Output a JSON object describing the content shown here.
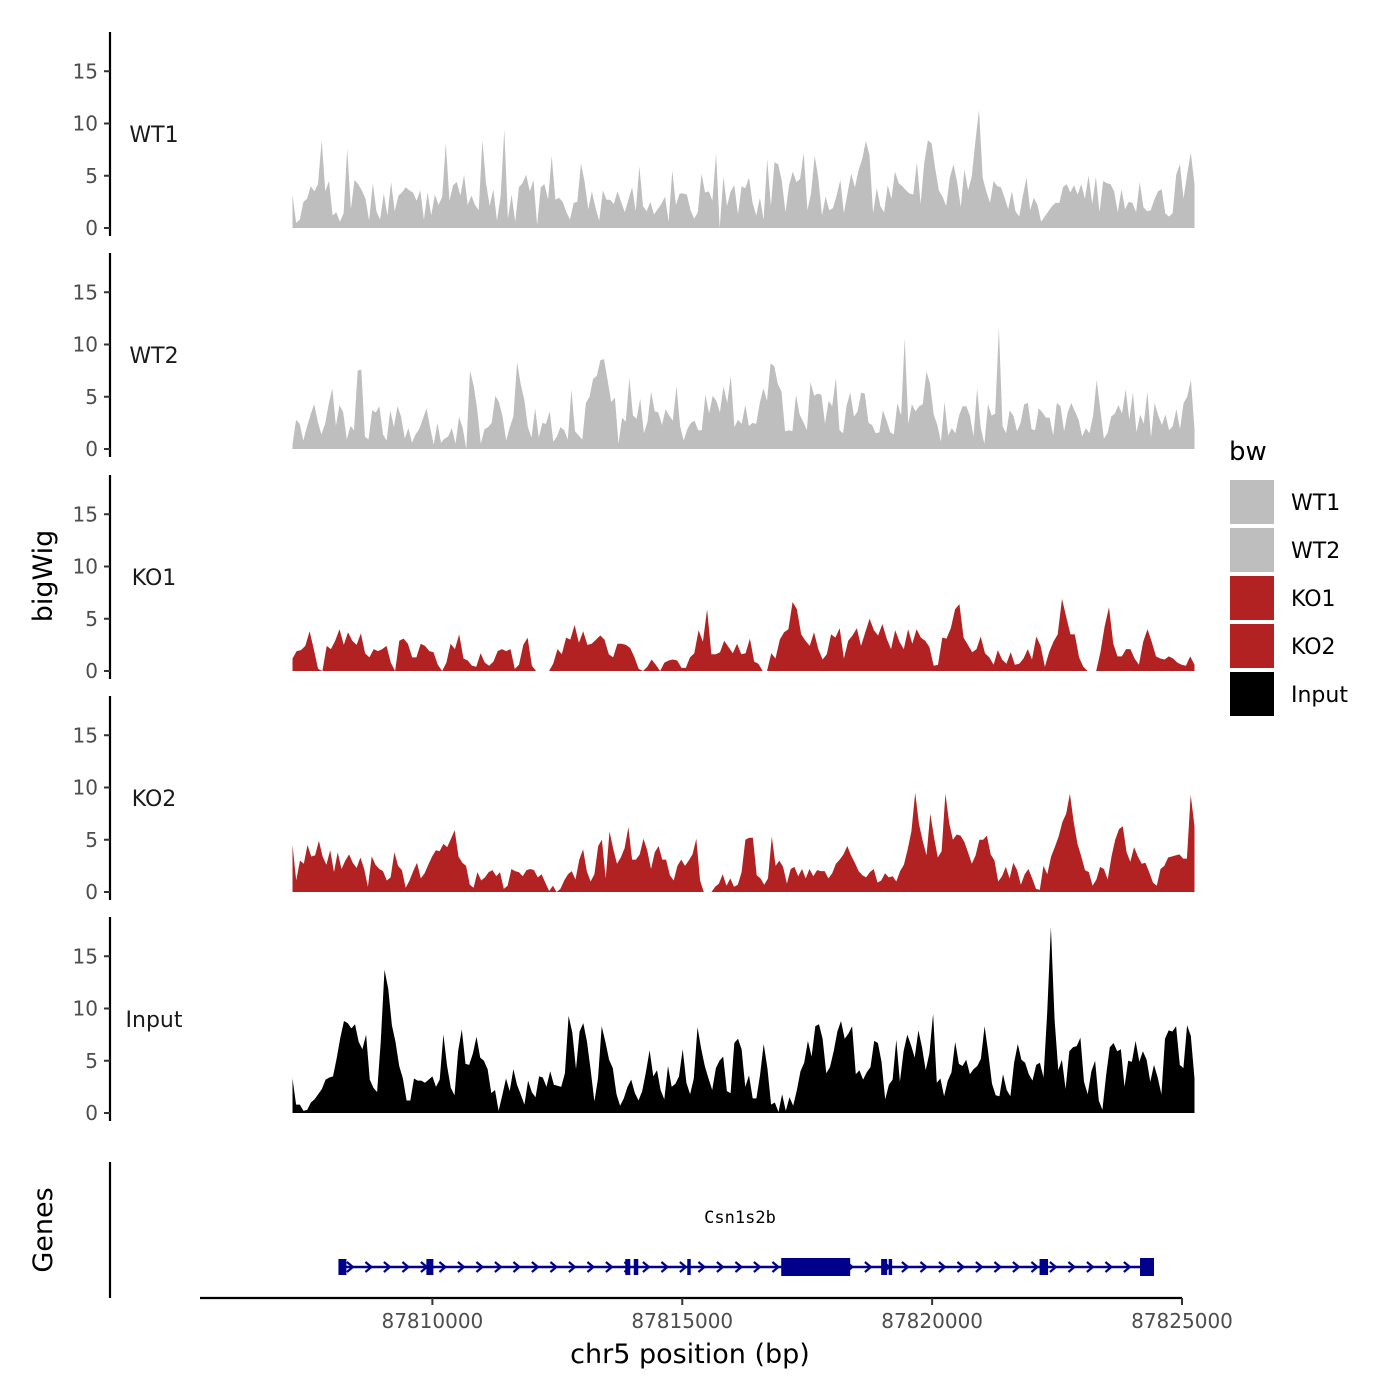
{
  "chart_data": {
    "type": "area",
    "title": "",
    "ylabel": "bigWig",
    "xlabel": "chr5 position (bp)",
    "genes_label": "Genes",
    "xlim": [
      87805350,
      87825000
    ],
    "ylim": [
      0,
      18.5
    ],
    "y_ticks": [
      0,
      5,
      10,
      15
    ],
    "x_ticks": [
      87810000,
      87815000,
      87820000,
      87825000
    ],
    "x_tick_labels": [
      "87810000",
      "87815000",
      "87820000",
      "87825000"
    ],
    "track_range": [
      87807200,
      87825250
    ],
    "legend": {
      "title": "bw",
      "entries": [
        {
          "label": "WT1",
          "color": "#bebebe"
        },
        {
          "label": "WT2",
          "color": "#bebebe"
        },
        {
          "label": "KO1",
          "color": "#b22222"
        },
        {
          "label": "KO2",
          "color": "#b22222"
        },
        {
          "label": "Input",
          "color": "#000000"
        }
      ]
    },
    "series": [
      {
        "name": "WT1",
        "color": "#bebebe",
        "values": [
          3.2,
          0.5,
          0.8,
          2.5,
          2.8,
          4,
          3.5,
          4.2,
          8.4,
          3.5,
          4.5,
          1.2,
          1.5,
          0.6,
          1.4,
          7.6,
          1.8,
          4.6,
          4.2,
          3.6,
          2.8,
          0.7,
          4.3,
          1.6,
          0.8,
          3.3,
          1.2,
          4.4,
          1.6,
          3.1,
          3.4,
          3.9,
          3.6,
          3.4,
          2.6,
          3.6,
          0.8,
          3.4,
          1.2,
          3.2,
          2.2,
          3,
          8.1,
          2.6,
          4.1,
          4.4,
          3.1,
          5.1,
          2.2,
          3.1,
          2.2,
          1.7,
          8.4,
          4.3,
          2.1,
          3.7,
          0.7,
          3,
          9.4,
          0.9,
          3.2,
          0.6,
          3.9,
          4.3,
          5.1,
          3.5,
          4.6,
          0.3,
          3.9,
          4.2,
          2.7,
          6.9,
          2.7,
          2.9,
          2.5,
          1.5,
          0.8,
          2.4,
          2.5,
          6.2,
          4.4,
          1.8,
          3.5,
          1.9,
          0.7,
          3.6,
          2.7,
          2.7,
          2.3,
          3.5,
          2.5,
          1.5,
          2.7,
          3.9,
          1.6,
          5.9,
          2.1,
          1.6,
          2.5,
          1.3,
          1.8,
          2.3,
          3,
          0.6,
          5.5,
          2.2,
          3.3,
          3.3,
          3.2,
          1.7,
          0.9,
          1.5,
          5.2,
          3.4,
          3.5,
          2.6,
          7.1,
          0,
          4.9,
          2.1,
          3.5,
          4.1,
          1.3,
          4,
          3.8,
          4.8,
          2.4,
          1.2,
          2.9,
          0.8,
          6.6,
          2.1,
          6.3,
          6.1,
          4.5,
          1.5,
          4.1,
          5.4,
          4.4,
          4.7,
          7.2,
          1.7,
          3.3,
          6.9,
          4.8,
          1.2,
          3,
          1.7,
          1.9,
          3.1,
          4.6,
          1.4,
          3.4,
          5.2,
          3.9,
          5.5,
          6.6,
          8.3,
          7,
          1.4,
          3.8,
          2.1,
          1.5,
          4.1,
          2.8,
          5.4,
          4.3,
          4,
          3.6,
          3.3,
          3.2,
          6.3,
          2.3,
          6.2,
          8.4,
          8.1,
          5.7,
          3.6,
          3,
          2.1,
          4.8,
          6.1,
          4.4,
          2,
          5.6,
          3.6,
          4.9,
          8.3,
          11.3,
          4.8,
          3.5,
          2.4,
          4.5,
          4,
          3.9,
          2.9,
          1.8,
          3.5,
          1.6,
          1.1,
          3.1,
          4.8,
          1.7,
          2.9,
          2.2,
          0.6,
          1.1,
          1.6,
          2.1,
          2.4,
          2.4,
          3.9,
          4.2,
          3.4,
          4.1,
          3.2,
          4.2,
          2.8,
          5,
          2.3,
          4.9,
          1.5,
          4.5,
          4.3,
          4.2,
          3.5,
          1.5,
          3.7,
          1.8,
          2.5,
          2.4,
          1.5,
          4.4,
          2,
          1.6,
          1.7,
          2.7,
          3.5,
          3.7,
          1.4,
          1.1,
          1.4,
          5.1,
          6.1,
          2.8,
          5.2,
          7.2,
          4.2
        ]
      },
      {
        "name": "WT2",
        "color": "#bebebe",
        "values": [
          0.4,
          2.8,
          2.4,
          0.8,
          2.1,
          3.3,
          4.3,
          2.6,
          1.4,
          2.4,
          4.3,
          5.8,
          2.2,
          4.2,
          3.5,
          0.9,
          2.2,
          1.8,
          7.5,
          7.6,
          1.2,
          0.9,
          3.7,
          3.5,
          4.1,
          1.4,
          0.8,
          3.7,
          2.1,
          4.1,
          3.1,
          1,
          2,
          0.6,
          1.4,
          1.9,
          2.9,
          3.9,
          2.1,
          0.4,
          2.5,
          0.6,
          1,
          1.2,
          2,
          0.5,
          3.1,
          2,
          0,
          7.5,
          6.1,
          3.8,
          0.5,
          1.9,
          2.1,
          2.5,
          5.1,
          4.5,
          3.1,
          0.8,
          2.1,
          3.1,
          8.3,
          6.2,
          4.7,
          2.1,
          1.1,
          3.9,
          1.1,
          2.5,
          2.4,
          3.6,
          0.7,
          1.2,
          2.1,
          1.8,
          0.9,
          5.7,
          1.7,
          1.3,
          0.9,
          4.4,
          5,
          6.7,
          7,
          8.5,
          8.6,
          6.6,
          4.5,
          4.9,
          0.5,
          3,
          2.6,
          6.8,
          3.2,
          2.9,
          4.8,
          1.5,
          2.6,
          5.5,
          3.6,
          3.5,
          2.3,
          3.8,
          3.2,
          2.7,
          6,
          2.2,
          0.8,
          1.9,
          2.5,
          2.7,
          1.8,
          1.8,
          5.2,
          3.4,
          5.1,
          4.6,
          3.5,
          6,
          4.4,
          7,
          2.1,
          2.8,
          2.4,
          4.2,
          2.2,
          2.5,
          2.4,
          4.4,
          5.8,
          4.6,
          8.2,
          7.9,
          6.2,
          5.5,
          1.7,
          1.8,
          1.7,
          5.2,
          3.3,
          2.6,
          1.8,
          6.4,
          5.1,
          5.3,
          5.2,
          2.4,
          4.6,
          4.1,
          6.8,
          1.8,
          1.5,
          4.2,
          5.4,
          3.1,
          3.6,
          5.4,
          5.3,
          2.5,
          2.3,
          1.5,
          1.6,
          3.7,
          2.7,
          1.6,
          1.4,
          4.4,
          3.2,
          10.6,
          2.4,
          4.3,
          3.6,
          4.1,
          4.3,
          7.4,
          6.3,
          3.3,
          2.3,
          0.7,
          4.5,
          1.3,
          2,
          1.5,
          3.2,
          4.1,
          4.1,
          3.2,
          1.2,
          5.8,
          2,
          0.5,
          4.3,
          3.2,
          3.4,
          11.6,
          2.2,
          1.5,
          3.7,
          3.2,
          1.7,
          2.5,
          4.3,
          4.4,
          1.9,
          1.8,
          3.9,
          3.5,
          3,
          3,
          1.3,
          4.4,
          4.1,
          1.7,
          3.5,
          4.4,
          3.6,
          2.8,
          1.2,
          2,
          1.5,
          3.2,
          6.6,
          3.8,
          1,
          1.5,
          3.1,
          3.4,
          4.2,
          3.4,
          5.7,
          2.8,
          5.4,
          1.6,
          3.3,
          2.4,
          5.5,
          1.1,
          4.4,
          3.2,
          2.3,
          3.3,
          1.8,
          2.2,
          3.8,
          1.9,
          4.4,
          5,
          6.6,
          1.9
        ]
      },
      {
        "name": "KO1",
        "color": "#b22222",
        "values": [
          1.2,
          1.9,
          2,
          2.4,
          3.8,
          2.1,
          0.2,
          0,
          2.4,
          2.1,
          2.9,
          4,
          2.5,
          3.7,
          2.9,
          2.5,
          3.6,
          1.7,
          1.3,
          2.1,
          1.9,
          2.1,
          2.4,
          0.8,
          0,
          2.9,
          3.1,
          2.6,
          1.3,
          1.3,
          2.6,
          2.4,
          1.9,
          1.8,
          0.6,
          0,
          0.8,
          2.6,
          2.1,
          3.5,
          1.2,
          1,
          0.5,
          0.4,
          1.7,
          0.8,
          0.5,
          0.9,
          1.9,
          2.1,
          1.9,
          2.1,
          0.2,
          0.6,
          2.5,
          3.2,
          0.5,
          0,
          0,
          0,
          0,
          0.7,
          2.1,
          1.6,
          3.2,
          3,
          4.4,
          2.7,
          3.8,
          2.5,
          2.6,
          3,
          3.4,
          3,
          1.6,
          1.3,
          2.6,
          2.6,
          2.5,
          2.2,
          1.3,
          0.2,
          0,
          0.4,
          1.1,
          0.6,
          0,
          0.8,
          1,
          1.1,
          1,
          0.3,
          0.3,
          1.3,
          1.7,
          3.9,
          2.8,
          5.9,
          1.6,
          1.6,
          1.8,
          2.9,
          2.3,
          1.7,
          2.6,
          1.6,
          1.7,
          3.1,
          0.9,
          0.7,
          0,
          0,
          1.7,
          1.2,
          3,
          3.7,
          4,
          6.6,
          5.9,
          3.5,
          2.9,
          2.4,
          3.7,
          2.1,
          1.1,
          1.6,
          3.5,
          3.2,
          4.1,
          1.2,
          2.9,
          3.4,
          4.1,
          2.4,
          3.7,
          5,
          3.9,
          3.4,
          4.5,
          3.1,
          2.1,
          3.9,
          2.8,
          2.1,
          4,
          2.6,
          4,
          3.2,
          2.9,
          2.3,
          0.5,
          0.6,
          3.2,
          3.1,
          4.1,
          5.9,
          6.4,
          3.2,
          2.5,
          1.8,
          2.1,
          3.3,
          1.7,
          1.3,
          0.6,
          2,
          1.1,
          0.7,
          1.8,
          0.6,
          0.7,
          1.2,
          2.1,
          1.1,
          3.3,
          2.4,
          0.4,
          1.8,
          2.8,
          3.5,
          6.9,
          5.2,
          3.5,
          3.5,
          1.3,
          0.4,
          0,
          0,
          0,
          1.8,
          4.3,
          6.1,
          2.6,
          1.4,
          1.4,
          2.1,
          2.1,
          1.2,
          0.6,
          2.8,
          4,
          2.8,
          1.4,
          1.2,
          1.1,
          1.4,
          1.2,
          0.8,
          0.6,
          0.5,
          1.4,
          0.6
        ]
      },
      {
        "name": "KO2",
        "color": "#b22222",
        "values": [
          4.5,
          1.1,
          3,
          2.7,
          4.5,
          3.4,
          3.5,
          4.9,
          3.4,
          2.6,
          4,
          1.9,
          3.8,
          2.2,
          3,
          3.6,
          2.8,
          2.3,
          3.3,
          2.2,
          0.5,
          3.4,
          2.6,
          2.2,
          2,
          1.1,
          1.4,
          3.8,
          2.5,
          2.1,
          0.4,
          1.1,
          2,
          2.8,
          1.3,
          1.8,
          2.6,
          3.4,
          4,
          3.9,
          4.6,
          4.3,
          5.1,
          5.9,
          3.4,
          2.8,
          2.5,
          0.7,
          0.4,
          1.9,
          1.1,
          1.4,
          1.9,
          2.1,
          1.5,
          1.9,
          0.3,
          0.6,
          2.2,
          2,
          1.9,
          1.5,
          2.1,
          2.2,
          2.1,
          1.4,
          1.7,
          0.9,
          0.1,
          0.6,
          0,
          0.3,
          1.1,
          1.7,
          2,
          1.2,
          3.1,
          4.1,
          2,
          1,
          1.7,
          4.4,
          5,
          1.3,
          5.8,
          4.1,
          2.7,
          3.3,
          4.2,
          6.2,
          3.1,
          3.1,
          3.6,
          5.1,
          4,
          2.2,
          3.8,
          4.4,
          3.1,
          3.1,
          1.6,
          1.1,
          2.5,
          3.1,
          2.5,
          3,
          3.6,
          5.1,
          1.1,
          0,
          0,
          0,
          0.5,
          0.8,
          1.7,
          0.6,
          1.3,
          0.5,
          0.7,
          1.9,
          5,
          5.2,
          5.2,
          1.6,
          1.3,
          0.7,
          1.3,
          5.3,
          2.5,
          3,
          2.4,
          0.8,
          2.2,
          2.4,
          1.5,
          2.2,
          1.3,
          2.2,
          1.5,
          2.1,
          2,
          2,
          1.3,
          1.8,
          2.7,
          3.1,
          3.6,
          4.4,
          3.5,
          2.8,
          2,
          1.6,
          1.4,
          1.9,
          2.2,
          0.9,
          1.1,
          1.8,
          1.4,
          1.5,
          1,
          2,
          2.6,
          4.1,
          5.8,
          9.5,
          6.5,
          4.9,
          3.5,
          7.5,
          5.2,
          3.3,
          3.9,
          9.4,
          6.6,
          5,
          5.5,
          5.4,
          4.8,
          3.8,
          2.7,
          3.5,
          5,
          5,
          5.4,
          3.6,
          3,
          1,
          1.5,
          2.4,
          1.3,
          2.8,
          2.1,
          0.7,
          1.7,
          2.2,
          1.3,
          0.3,
          0.2,
          2.5,
          1.7,
          3.4,
          4.3,
          5.3,
          6.7,
          7.5,
          9.4,
          6.7,
          4.6,
          3.4,
          2.1,
          1.9,
          0.6,
          1.2,
          2.4,
          2.2,
          1.2,
          3.4,
          5,
          6,
          6.3,
          3.8,
          2.9,
          4.3,
          3.4,
          2.7,
          2.8,
          1.9,
          0.9,
          0.6,
          2.2,
          2.5,
          3.3,
          3.4,
          3.5,
          3.6,
          3.2,
          3.2,
          9.3,
          6.3
        ]
      },
      {
        "name": "Input",
        "color": "#000000",
        "values": [
          3.3,
          0.8,
          0.8,
          0.2,
          0.3,
          1,
          1.3,
          1.8,
          2.3,
          3.2,
          3.4,
          3.5,
          5.2,
          7.2,
          8.8,
          8.6,
          8.1,
          8.5,
          6.8,
          6.1,
          7.5,
          3.2,
          2.4,
          2,
          6.9,
          13.7,
          11.9,
          8.4,
          6.8,
          4.5,
          3.3,
          1.2,
          1.2,
          3.3,
          3.1,
          3.1,
          2.9,
          3.2,
          3.5,
          2.5,
          3.2,
          7.5,
          4.5,
          2.4,
          1.7,
          5.9,
          8,
          4.7,
          4.6,
          5.7,
          7.3,
          5.3,
          5,
          4.2,
          1.9,
          2.2,
          0.2,
          1.7,
          3.3,
          2.1,
          4.2,
          2.7,
          1.8,
          0.8,
          3.1,
          2,
          1.5,
          3.5,
          3.4,
          2.5,
          4,
          2.7,
          2.6,
          2.5,
          3.8,
          9.3,
          7.7,
          4.2,
          7.8,
          8.6,
          6.8,
          4.1,
          1.1,
          3.3,
          8.3,
          6.8,
          5.1,
          4.3,
          1.8,
          0.7,
          1.4,
          2.5,
          3.2,
          1.9,
          1.2,
          2.1,
          3.9,
          6,
          3.5,
          4.1,
          2.2,
          1.3,
          4.5,
          2.5,
          2.8,
          3.5,
          6.1,
          2.9,
          1.8,
          3.3,
          8.2,
          6.2,
          4.5,
          3.3,
          2.2,
          4.3,
          5,
          5.4,
          2.1,
          1.9,
          6.7,
          7.1,
          6.1,
          2.5,
          3.6,
          1.4,
          1.4,
          3.6,
          6.6,
          4.3,
          0.8,
          1,
          0.1,
          1.8,
          0.2,
          1.5,
          0.7,
          2.2,
          4,
          4.8,
          6.9,
          5.4,
          8.3,
          8.5,
          7.1,
          3.8,
          4.4,
          5.9,
          7.8,
          8.8,
          7.1,
          7.6,
          8.3,
          3.7,
          4.1,
          3.2,
          3.9,
          4.4,
          6.9,
          6.7,
          4.9,
          1.3,
          2.7,
          3.2,
          7,
          3,
          5.9,
          7.5,
          6.5,
          5.3,
          7.9,
          6.3,
          4.1,
          5.7,
          9.5,
          2.9,
          3.3,
          1.6,
          3.1,
          3.9,
          6.8,
          4.7,
          4.5,
          5.1,
          3.7,
          4.2,
          4.5,
          5.2,
          8.3,
          5.7,
          2.8,
          1.7,
          1.6,
          3.7,
          2.2,
          1.6,
          4.8,
          6.6,
          5.1,
          4.8,
          3.7,
          3.1,
          4.6,
          4.8,
          3.4,
          9.6,
          17.8,
          8.9,
          4.1,
          5.1,
          2.3,
          5.9,
          6.3,
          6.4,
          7.2,
          3,
          1.8,
          4,
          5,
          1.2,
          0.3,
          3.6,
          6.3,
          6.7,
          5.9,
          6.1,
          2.5,
          5,
          4.9,
          6.9,
          4.9,
          5.9,
          5.1,
          3,
          4.6,
          3.4,
          1.8,
          7.1,
          7.9,
          7.8,
          8.3,
          4.6,
          4.3,
          8.4,
          7.4,
          3.3
        ]
      }
    ],
    "gene": {
      "name": "Csn1s2b",
      "color": "#00008b",
      "start": 87808150,
      "end": 87824430,
      "exons": [
        [
          87808120,
          87808280
        ],
        [
          87809880,
          87810020
        ],
        [
          87813860,
          87813960
        ],
        [
          87814030,
          87814120
        ],
        [
          87815100,
          87815170
        ],
        [
          87816980,
          87818360
        ],
        [
          87818980,
          87819100
        ],
        [
          87819130,
          87819200
        ],
        [
          87822150,
          87822320
        ],
        [
          87824160,
          87824440
        ]
      ]
    }
  }
}
